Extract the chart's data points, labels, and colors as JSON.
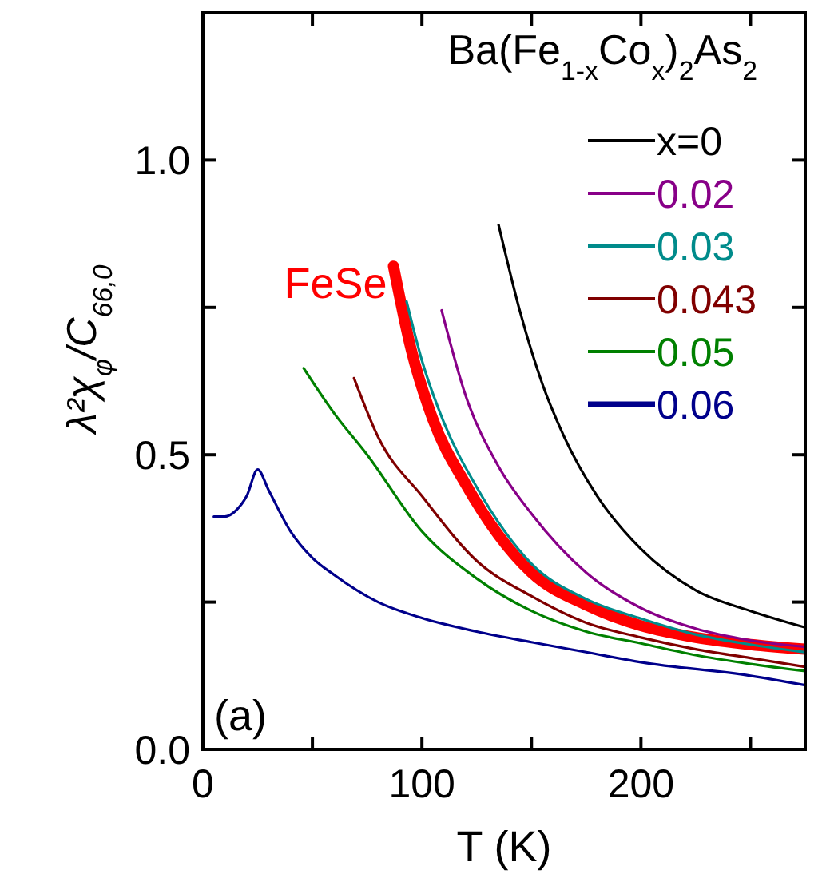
{
  "chart_data": {
    "type": "line",
    "xlabel": "T (K)",
    "ylabel": "λ²χ$_{φ}$/C$_{66,0}$",
    "legend_title": "Ba(Fe$_{1-x}$Co$_{x}$)$_{2}$As$_{2}$",
    "legend": "top right",
    "grid": false,
    "marker": "none",
    "line_style": "solid",
    "xlim": [
      0,
      275
    ],
    "xticks": [
      0,
      {
        "value": 50,
        "label": null
      },
      100,
      {
        "value": 150,
        "label": null
      },
      200,
      {
        "value": 250,
        "label": null
      }
    ],
    "ylim": [
      0,
      1.25
    ],
    "yticks": [
      {
        "value": 0,
        "label": "0.0"
      },
      {
        "value": 0.25,
        "label": null
      },
      {
        "value": 0.5,
        "label": "0.5"
      },
      {
        "value": 0.75,
        "label": null
      },
      {
        "value": 1,
        "label": "1.0"
      }
    ],
    "annotations": [
      "(a)"
    ],
    "series": [
      {
        "name": "x=0",
        "color": "#000000",
        "x": [
          135,
          145,
          155,
          165,
          180,
          200,
          225,
          250,
          275
        ],
        "values": [
          0.89,
          0.74,
          0.62,
          0.53,
          0.43,
          0.34,
          0.27,
          0.235,
          0.207
        ]
      },
      {
        "name": "0.02",
        "color": "#880088",
        "x": [
          109,
          120,
          135,
          150,
          175,
          200,
          225,
          250,
          275
        ],
        "values": [
          0.745,
          0.6,
          0.48,
          0.4,
          0.3,
          0.24,
          0.205,
          0.185,
          0.174
        ]
      },
      {
        "name": "0.03",
        "color": "#008b8b",
        "x": [
          93,
          100,
          110,
          125,
          150,
          175,
          200,
          225,
          250,
          275
        ],
        "values": [
          0.76,
          0.66,
          0.555,
          0.445,
          0.315,
          0.255,
          0.222,
          0.195,
          0.178,
          0.165
        ]
      },
      {
        "name": "0.043",
        "color": "#800000",
        "x": [
          69,
          80,
          100,
          125,
          150,
          175,
          200,
          225,
          250,
          275
        ],
        "values": [
          0.63,
          0.53,
          0.43,
          0.32,
          0.26,
          0.215,
          0.19,
          0.17,
          0.155,
          0.14
        ]
      },
      {
        "name": "0.05",
        "color": "#008000",
        "x": [
          46,
          60,
          75,
          100,
          125,
          150,
          175,
          200,
          225,
          250,
          275
        ],
        "values": [
          0.647,
          0.57,
          0.5,
          0.37,
          0.29,
          0.235,
          0.2,
          0.18,
          0.16,
          0.145,
          0.133
        ]
      },
      {
        "name": "0.06",
        "color": "#00008b",
        "x": [
          5,
          10,
          15,
          20,
          25,
          30,
          40,
          50,
          60,
          80,
          100,
          125,
          150,
          175,
          200,
          250,
          275
        ],
        "values": [
          0.395,
          0.395,
          0.405,
          0.43,
          0.475,
          0.44,
          0.37,
          0.325,
          0.296,
          0.25,
          0.223,
          0.2,
          0.182,
          0.165,
          0.148,
          0.125,
          0.109
        ]
      },
      {
        "name": "FeSe",
        "color": "#ff0000",
        "x": [
          87,
          95,
          105,
          120,
          150,
          175,
          200,
          225,
          250,
          275
        ],
        "values": [
          0.82,
          0.68,
          0.56,
          0.45,
          0.3,
          0.245,
          0.21,
          0.19,
          0.178,
          0.17
        ]
      }
    ]
  }
}
